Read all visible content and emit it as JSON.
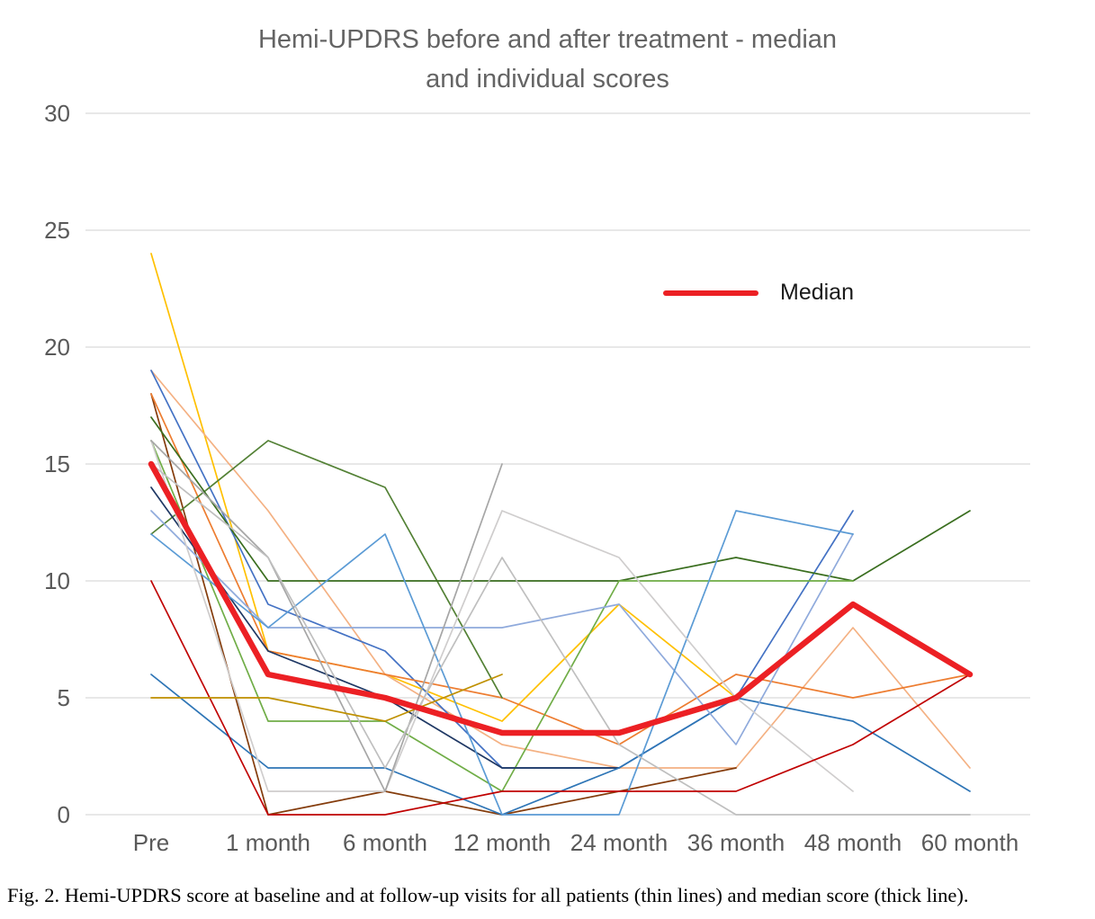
{
  "title": {
    "line1": "Hemi-UPDRS before and after treatment - median",
    "line2": "and individual scores"
  },
  "legend": {
    "label": "Median",
    "color": "#EC2024"
  },
  "caption": "Fig. 2.  Hemi-UPDRS score at baseline and at follow-up visits for all patients (thin lines) and median score (thick line).",
  "chart_data": {
    "type": "line",
    "title": "Hemi-UPDRS before and after treatment - median and individual scores",
    "xlabel": "",
    "ylabel": "",
    "categories": [
      "Pre",
      "1 month",
      "6 month",
      "12 month",
      "24 month",
      "36 month",
      "48 month",
      "60 month"
    ],
    "y_ticks": [
      0,
      5,
      10,
      15,
      20,
      25,
      30
    ],
    "ylim": [
      0,
      30
    ],
    "grid": true,
    "legend_position": "inside-top-right",
    "series": [
      {
        "name": "patient-yellow",
        "color": "#FFC000",
        "role": "patient",
        "values": [
          24,
          7,
          6,
          4,
          9,
          5,
          null,
          null
        ]
      },
      {
        "name": "patient-salmon",
        "color": "#F4B183",
        "role": "patient",
        "values": [
          19,
          13,
          6,
          3,
          2,
          2,
          8,
          2
        ]
      },
      {
        "name": "patient-royal-blue",
        "color": "#4472C4",
        "role": "patient",
        "values": [
          19,
          9,
          7,
          2,
          2,
          5,
          13,
          null
        ]
      },
      {
        "name": "patient-brown",
        "color": "#843C0C",
        "role": "patient",
        "values": [
          18,
          0,
          1,
          0,
          1,
          2,
          null,
          null
        ]
      },
      {
        "name": "patient-orange",
        "color": "#ED7D31",
        "role": "patient",
        "values": [
          18,
          7,
          6,
          5,
          3,
          6,
          5,
          6
        ]
      },
      {
        "name": "patient-forest-green",
        "color": "#538135",
        "role": "patient",
        "values": [
          12,
          16,
          14,
          5,
          null,
          null,
          null,
          null
        ]
      },
      {
        "name": "patient-dark-green",
        "color": "#3A6E1F",
        "role": "patient",
        "values": [
          17,
          10,
          10,
          10,
          10,
          11,
          10,
          13
        ]
      },
      {
        "name": "patient-green",
        "color": "#70AD47",
        "role": "patient",
        "values": [
          16,
          4,
          4,
          1,
          10,
          10,
          10,
          null
        ]
      },
      {
        "name": "patient-navy",
        "color": "#1F3864",
        "role": "patient",
        "values": [
          14,
          7,
          5,
          2,
          2,
          null,
          null,
          null
        ]
      },
      {
        "name": "patient-steel-blue",
        "color": "#2E75B6",
        "role": "patient",
        "values": [
          6,
          2,
          2,
          0,
          2,
          5,
          4,
          1
        ]
      },
      {
        "name": "patient-cornflower",
        "color": "#8FAADC",
        "role": "patient",
        "values": [
          13,
          8,
          8,
          8,
          9,
          3,
          12,
          null
        ]
      },
      {
        "name": "patient-medium-blue",
        "color": "#5B9BD5",
        "role": "patient",
        "values": [
          12,
          8,
          12,
          0,
          0,
          13,
          12,
          null
        ]
      },
      {
        "name": "patient-light-gray",
        "color": "#CFCDCD",
        "role": "patient",
        "values": [
          16,
          1,
          1,
          13,
          11,
          5,
          1,
          null
        ]
      },
      {
        "name": "patient-gray",
        "color": "#A6A6A6",
        "role": "patient",
        "values": [
          16,
          11,
          1,
          15,
          null,
          null,
          null,
          null
        ]
      },
      {
        "name": "patient-silver",
        "color": "#BFBFBF",
        "role": "patient",
        "values": [
          15,
          11,
          2,
          11,
          3,
          0,
          0,
          0
        ]
      },
      {
        "name": "patient-dark-red",
        "color": "#C00000",
        "role": "patient",
        "values": [
          10,
          0,
          0,
          1,
          1,
          1,
          3,
          6
        ]
      },
      {
        "name": "patient-dark-yellow",
        "color": "#BF9000",
        "role": "patient",
        "values": [
          5,
          5,
          4,
          6,
          null,
          null,
          null,
          null
        ]
      },
      {
        "name": "Median",
        "color": "#EC2024",
        "role": "median",
        "values": [
          15,
          6,
          5,
          3.5,
          3.5,
          5,
          9,
          6
        ]
      }
    ]
  }
}
